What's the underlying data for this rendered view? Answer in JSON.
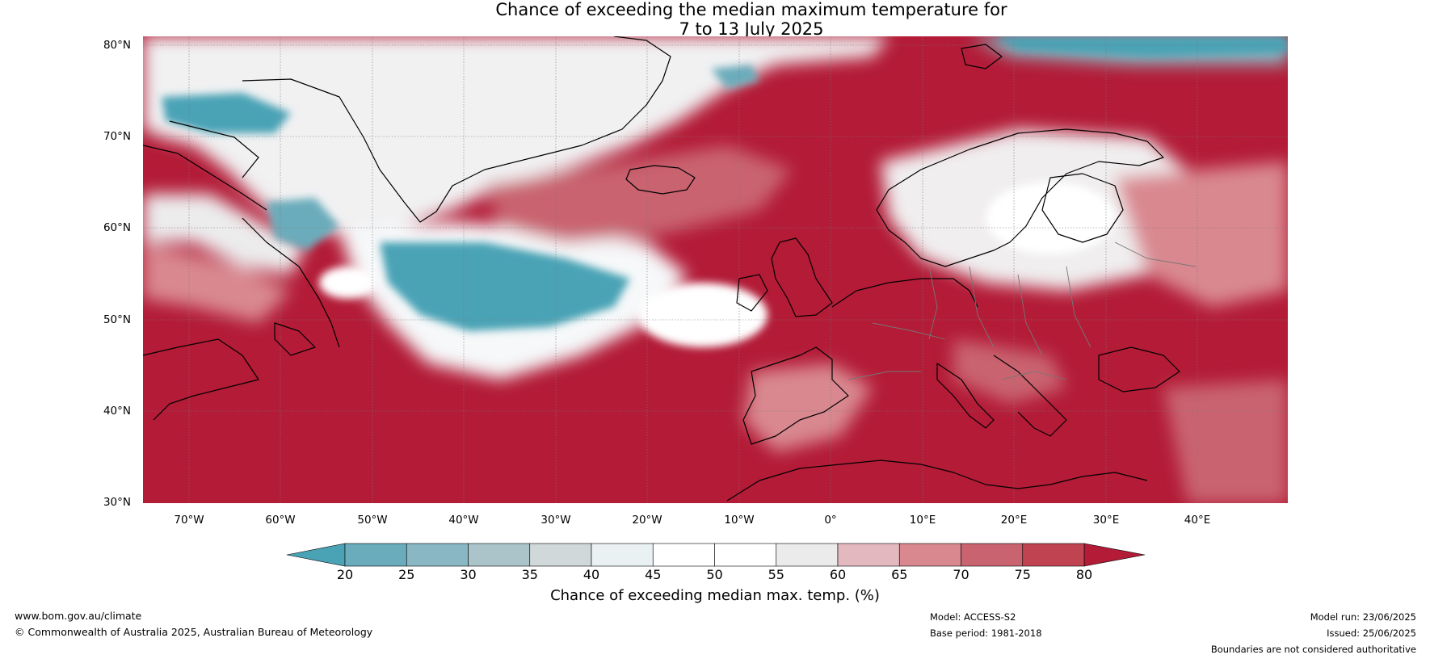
{
  "header": {
    "title_line1": "Chance of exceeding the median maximum temperature for",
    "title_line2": "7 to 13 July 2025"
  },
  "axes": {
    "latitudes": [
      "80°N",
      "70°N",
      "60°N",
      "50°N",
      "40°N",
      "30°N"
    ],
    "longitudes": [
      "70°W",
      "60°W",
      "50°W",
      "40°W",
      "30°W",
      "20°W",
      "10°W",
      "0°",
      "10°E",
      "20°E",
      "30°E",
      "40°E"
    ]
  },
  "colorbar": {
    "ticks": [
      "20",
      "25",
      "30",
      "35",
      "40",
      "45",
      "50",
      "55",
      "60",
      "65",
      "70",
      "75",
      "80"
    ],
    "label": "Chance of exceeding median max. temp. (%)",
    "colors": [
      "#4aa3b5",
      "#6aacbb",
      "#89b8c4",
      "#aac4ca",
      "#d0d8da",
      "#eaf1f3",
      "#ffffff",
      "#ffffff",
      "#ecebec",
      "#e3b8bf",
      "#d98890",
      "#c9636f",
      "#c04352",
      "#b31b37"
    ]
  },
  "footer": {
    "website": "www.bom.gov.au/climate",
    "copyright": "© Commonwealth of Australia 2025, Australian Bureau of Meteorology",
    "model": "Model: ACCESS-S2",
    "base_period": "Base period: 1981-2018",
    "model_run": "Model run: 23/06/2025",
    "issued": "Issued: 25/06/2025",
    "disclaimer": "Boundaries are not considered authoritative"
  }
}
